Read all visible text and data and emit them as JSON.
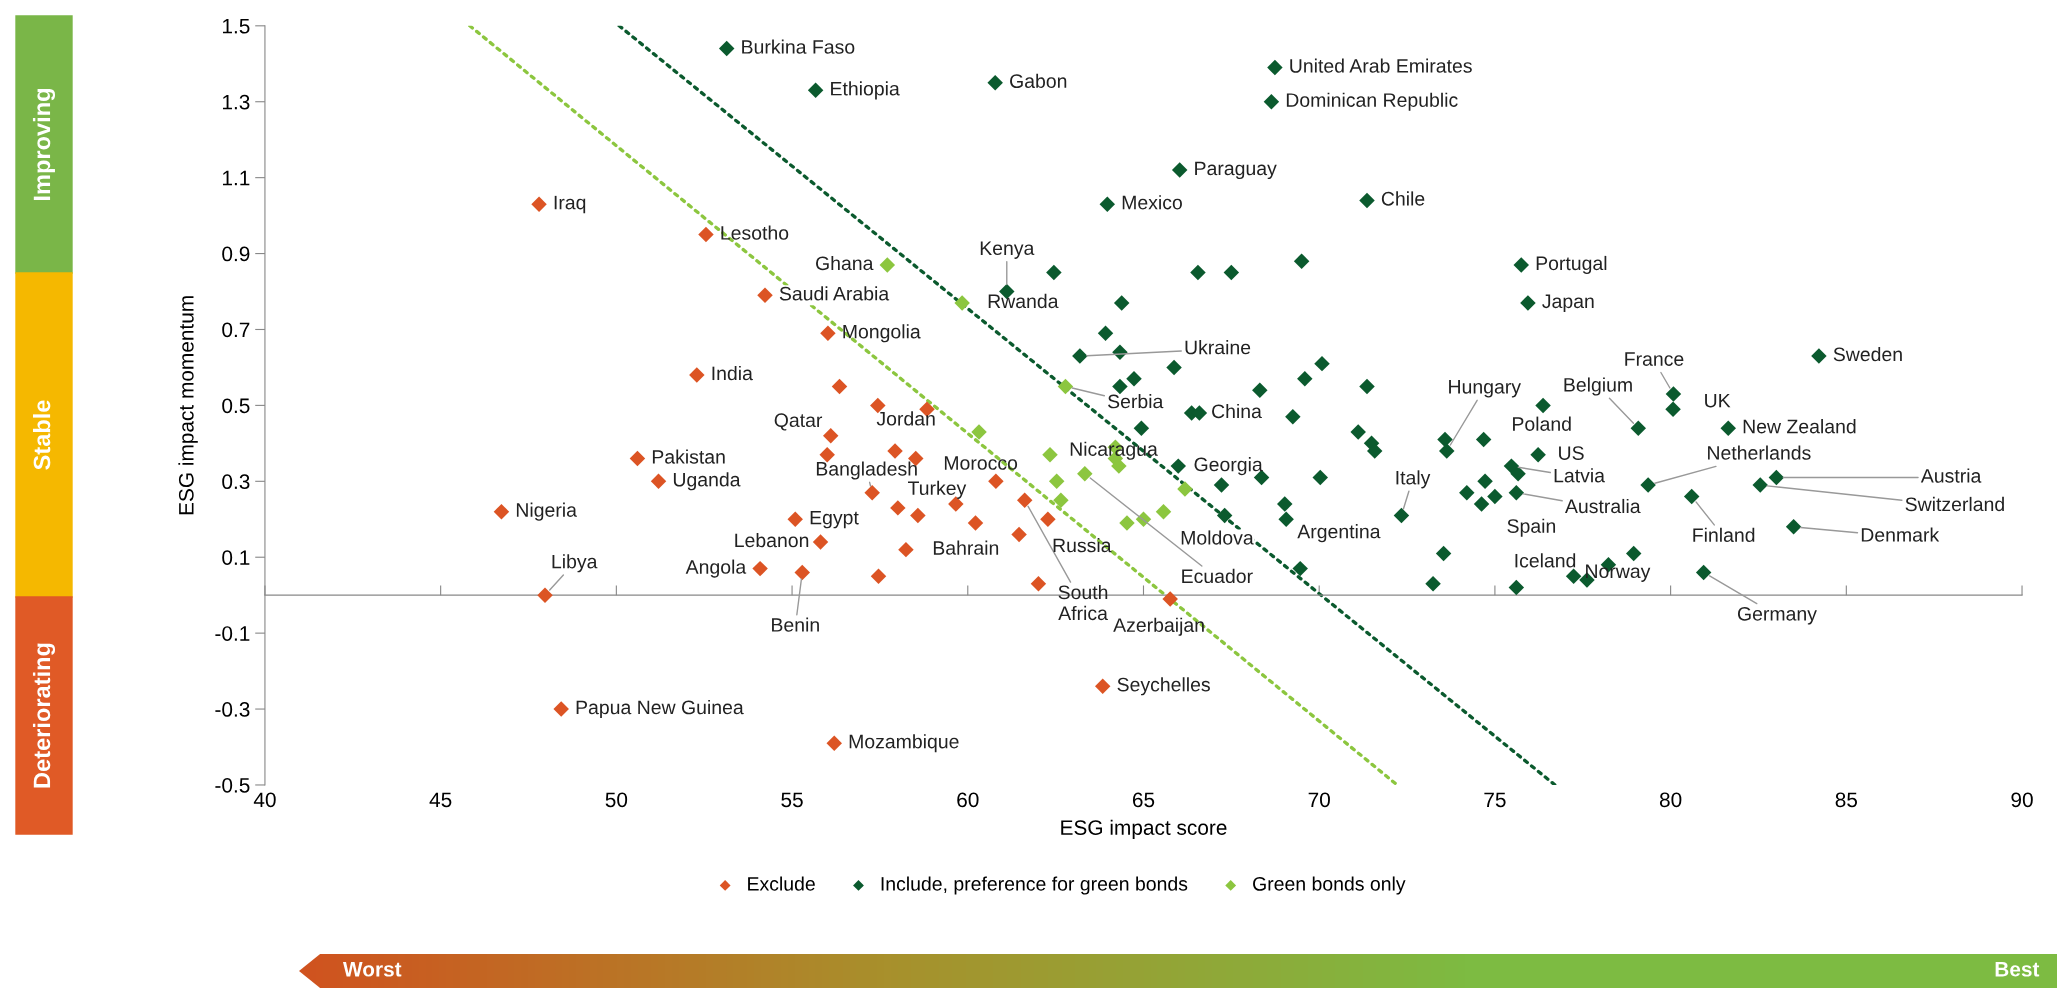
{
  "chart_data": {
    "type": "scatter",
    "xlabel": "ESG impact score",
    "ylabel": "ESG impact momentum",
    "xlim": [
      40,
      90
    ],
    "xticks": [
      40,
      45,
      50,
      55,
      60,
      65,
      70,
      75,
      80,
      85,
      90
    ],
    "ylim": [
      -0.5,
      1.5
    ],
    "yticks": [
      -0.5,
      -0.3,
      -0.1,
      0.1,
      0.3,
      0.5,
      0.7,
      0.9,
      1.1,
      1.3,
      1.5
    ],
    "marker": "diamond",
    "legend": "bottom",
    "series": [
      {
        "name": "Exclude",
        "color": "#dc5424",
        "x": [
          47.8,
          52.55,
          54.23,
          56.02,
          52.29,
          56.35,
          57.44,
          58.84,
          56.1,
          50.6,
          51.2,
          56.0,
          57.93,
          58.52,
          60.8,
          57.28,
          58.01,
          58.58,
          59.66,
          60.22,
          61.62,
          62.28,
          58.24,
          61.46,
          55.09,
          55.81,
          54.09,
          55.29,
          57.46,
          62.01,
          46.73,
          47.97,
          48.43,
          56.2,
          63.84,
          65.76
        ],
        "values": [
          1.03,
          0.95,
          0.79,
          0.69,
          0.58,
          0.55,
          0.5,
          0.49,
          0.42,
          0.36,
          0.3,
          0.37,
          0.38,
          0.36,
          0.3,
          0.27,
          0.23,
          0.21,
          0.24,
          0.19,
          0.25,
          0.2,
          0.12,
          0.16,
          0.2,
          0.14,
          0.07,
          0.06,
          0.05,
          0.03,
          0.22,
          0.0,
          -0.3,
          -0.39,
          -0.24,
          -0.01
        ]
      },
      {
        "name": "Include, preference for green bonds",
        "color": "#0b5a2e",
        "x": [
          53.14,
          55.67,
          60.78,
          63.97,
          61.11,
          62.45,
          64.38,
          63.92,
          63.19,
          64.33,
          64.33,
          64.73,
          68.74,
          68.64,
          66.03,
          71.36,
          66.55,
          67.5,
          69.5,
          75.75,
          75.94,
          84.22,
          65.87,
          68.31,
          69.59,
          70.08,
          71.36,
          76.37,
          80.08,
          80.07,
          64.94,
          66.37,
          66.59,
          69.25,
          65.99,
          67.22,
          68.36,
          70.03,
          67.31,
          69.02,
          69.06,
          69.46,
          71.11,
          71.49,
          71.58,
          72.34,
          73.54,
          73.24,
          73.58,
          73.63,
          74.68,
          76.23,
          75.47,
          75.66,
          74.2,
          74.62,
          75.0,
          74.72,
          75.61,
          75.61,
          77.24,
          77.62,
          78.23,
          78.95,
          80.94,
          79.08,
          81.64,
          79.36,
          80.6,
          83.01,
          82.55,
          83.5
        ],
        "values": [
          1.44,
          1.33,
          1.35,
          1.03,
          0.8,
          0.85,
          0.77,
          0.69,
          0.63,
          0.64,
          0.55,
          0.57,
          1.39,
          1.3,
          1.12,
          1.04,
          0.85,
          0.85,
          0.88,
          0.87,
          0.77,
          0.63,
          0.6,
          0.54,
          0.57,
          0.61,
          0.55,
          0.5,
          0.53,
          0.49,
          0.44,
          0.48,
          0.48,
          0.47,
          0.34,
          0.29,
          0.31,
          0.31,
          0.21,
          0.24,
          0.2,
          0.07,
          0.43,
          0.4,
          0.38,
          0.21,
          0.11,
          0.03,
          0.41,
          0.38,
          0.41,
          0.37,
          0.34,
          0.32,
          0.27,
          0.24,
          0.26,
          0.3,
          0.27,
          0.02,
          0.05,
          0.04,
          0.08,
          0.11,
          0.06,
          0.44,
          0.44,
          0.29,
          0.26,
          0.31,
          0.29,
          0.18
        ]
      },
      {
        "name": "Green bonds only",
        "color": "#8cc63f",
        "x": [
          57.71,
          59.84,
          62.78,
          60.32,
          62.34,
          62.53,
          62.65,
          63.33,
          64.2,
          64.2,
          64.3,
          64.53,
          65.0,
          65.57,
          66.18
        ],
        "values": [
          0.87,
          0.77,
          0.55,
          0.43,
          0.37,
          0.3,
          0.25,
          0.32,
          0.39,
          0.36,
          0.34,
          0.19,
          0.2,
          0.22,
          0.28
        ]
      },
      {
        "type": "line",
        "color": "#8cc63f",
        "line_style": "dotted",
        "marker": "none",
        "x": [
          45.83,
          72.22
        ],
        "values": [
          1.5,
          -0.5
        ]
      },
      {
        "type": "line",
        "color": "#0b5a2e",
        "line_style": "dotted",
        "marker": "none",
        "x": [
          50.08,
          76.71
        ],
        "values": [
          1.5,
          -0.5
        ]
      }
    ],
    "annotations": [
      "Improving",
      "Stable",
      "Deteriorating",
      "Worst",
      "Best",
      {
        "text": "Burkina Faso",
        "x": 53.14,
        "y": 1.44
      },
      {
        "text": "Ethiopia",
        "x": 55.67,
        "y": 1.33
      },
      {
        "text": "Gabon",
        "x": 60.78,
        "y": 1.35
      },
      {
        "text": "United Arab Emirates",
        "x": 68.74,
        "y": 1.39
      },
      {
        "text": "Dominican Republic",
        "x": 68.64,
        "y": 1.3
      },
      {
        "text": "Paraguay",
        "x": 66.03,
        "y": 1.12
      },
      {
        "text": "Mexico",
        "x": 63.97,
        "y": 1.03
      },
      {
        "text": "Chile",
        "x": 71.36,
        "y": 1.04
      },
      {
        "text": "Iraq",
        "x": 47.8,
        "y": 1.03
      },
      {
        "text": "Lesotho",
        "x": 52.55,
        "y": 0.95
      },
      {
        "text": "Kenya",
        "x": 61.11,
        "y": 0.8
      },
      {
        "text": "Ghana",
        "x": 57.71,
        "y": 0.87
      },
      {
        "text": "Saudi Arabia",
        "x": 54.23,
        "y": 0.79
      },
      {
        "text": "Rwanda",
        "x": 59.84,
        "y": 0.77
      },
      {
        "text": "Mongolia",
        "x": 56.02,
        "y": 0.69
      },
      {
        "text": "India",
        "x": 52.29,
        "y": 0.58
      },
      {
        "text": "Ukraine",
        "x": 63.19,
        "y": 0.63
      },
      {
        "text": "Serbia",
        "x": 62.78,
        "y": 0.55
      },
      {
        "text": "China",
        "x": 66.37,
        "y": 0.48
      },
      {
        "text": "Qatar",
        "x": 56.1,
        "y": 0.42
      },
      {
        "text": "Jordan",
        "x": 57.93,
        "y": 0.38
      },
      {
        "text": "Pakistan",
        "x": 50.6,
        "y": 0.36
      },
      {
        "text": "Uganda",
        "x": 51.2,
        "y": 0.3
      },
      {
        "text": "Bangladesh",
        "x": 57.28,
        "y": 0.27
      },
      {
        "text": "Morocco",
        "x": 60.8,
        "y": 0.3
      },
      {
        "text": "Turkey",
        "x": 58.01,
        "y": 0.23
      },
      {
        "text": "Nigeria",
        "x": 46.73,
        "y": 0.22
      },
      {
        "text": "Egypt",
        "x": 55.09,
        "y": 0.2
      },
      {
        "text": "Lebanon",
        "x": 55.81,
        "y": 0.14
      },
      {
        "text": "Bahrain",
        "x": 58.24,
        "y": 0.12
      },
      {
        "text": "Angola",
        "x": 54.09,
        "y": 0.07
      },
      {
        "text": "Libya",
        "x": 47.97,
        "y": 0.0
      },
      {
        "text": "Benin",
        "x": 55.29,
        "y": 0.06
      },
      {
        "text": "South\nAfrica",
        "x": 61.62,
        "y": 0.25
      },
      {
        "text": "Russia",
        "x": 62.28,
        "y": 0.2
      },
      {
        "text": "Azerbaijan",
        "x": 65.76,
        "y": -0.01
      },
      {
        "text": "Seychelles",
        "x": 63.84,
        "y": -0.24
      },
      {
        "text": "Papua New Guinea",
        "x": 48.43,
        "y": -0.3
      },
      {
        "text": "Mozambique",
        "x": 56.2,
        "y": -0.39
      },
      {
        "text": "Nicaragua",
        "x": 62.53,
        "y": 0.3
      },
      {
        "text": "Georgia",
        "x": 65.99,
        "y": 0.34
      },
      {
        "text": "Moldova",
        "x": 65.57,
        "y": 0.22
      },
      {
        "text": "Ecuador",
        "x": 63.33,
        "y": 0.32
      },
      {
        "text": "Argentina",
        "x": 69.06,
        "y": 0.2
      },
      {
        "text": "Italy",
        "x": 72.34,
        "y": 0.21
      },
      {
        "text": "Hungary",
        "x": 73.63,
        "y": 0.38
      },
      {
        "text": "Poland",
        "x": 74.68,
        "y": 0.41
      },
      {
        "text": "US",
        "x": 76.23,
        "y": 0.37
      },
      {
        "text": "Latvia",
        "x": 75.47,
        "y": 0.34
      },
      {
        "text": "Australia",
        "x": 75.61,
        "y": 0.27
      },
      {
        "text": "Spain",
        "x": 74.62,
        "y": 0.24
      },
      {
        "text": "Iceland",
        "x": 77.24,
        "y": 0.05
      },
      {
        "text": "Norway",
        "x": 78.95,
        "y": 0.11
      },
      {
        "text": "Germany",
        "x": 80.94,
        "y": 0.06
      },
      {
        "text": "France",
        "x": 80.08,
        "y": 0.53
      },
      {
        "text": "UK",
        "x": 80.07,
        "y": 0.49
      },
      {
        "text": "Belgium",
        "x": 79.08,
        "y": 0.44
      },
      {
        "text": "Sweden",
        "x": 84.22,
        "y": 0.63
      },
      {
        "text": "New Zealand",
        "x": 81.64,
        "y": 0.44
      },
      {
        "text": "Netherlands",
        "x": 79.36,
        "y": 0.29
      },
      {
        "text": "Austria",
        "x": 83.01,
        "y": 0.31
      },
      {
        "text": "Switzerland",
        "x": 82.55,
        "y": 0.29
      },
      {
        "text": "Finland",
        "x": 80.6,
        "y": 0.26
      },
      {
        "text": "Denmark",
        "x": 83.5,
        "y": 0.18
      },
      {
        "text": "Japan",
        "x": 75.94,
        "y": 0.77
      },
      {
        "text": "Portugal",
        "x": 75.75,
        "y": 0.87
      }
    ]
  }
}
